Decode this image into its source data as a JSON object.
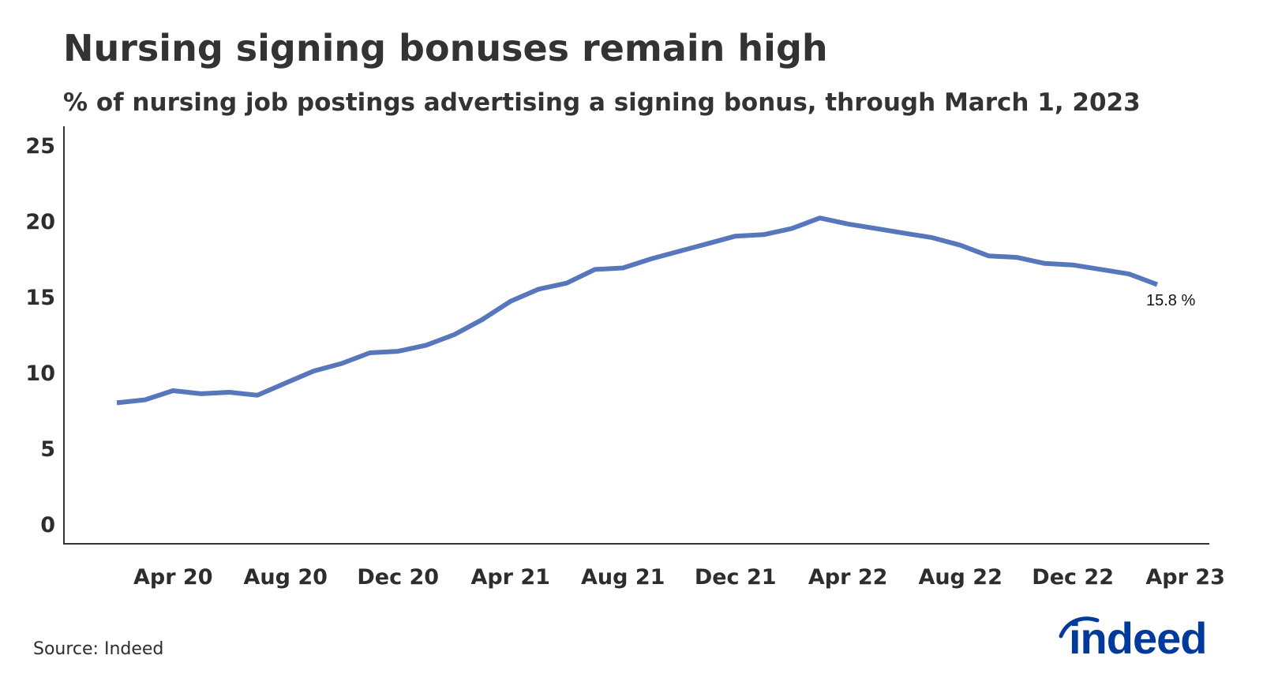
{
  "header": {
    "title": "Nursing signing bonuses remain high",
    "subtitle": "% of nursing job postings advertising a signing bonus, through March 1, 2023"
  },
  "footer": {
    "source": "Source: Indeed",
    "logo_text": "indeed"
  },
  "colors": {
    "line": "#5677bc",
    "axis": "#333333",
    "logo": "#003a9b"
  },
  "chart_data": {
    "type": "line",
    "title": "Nursing signing bonuses remain high",
    "subtitle": "% of nursing job postings advertising a signing bonus, through March 1, 2023",
    "xlabel": "",
    "ylabel": "",
    "ylim": [
      0,
      25
    ],
    "yticks": [
      0,
      5,
      10,
      15,
      20,
      25
    ],
    "xtick_labels": [
      "Apr 20",
      "Aug 20",
      "Dec 20",
      "Apr 21",
      "Aug 21",
      "Dec 21",
      "Apr 22",
      "Aug 22",
      "Dec 22",
      "Apr 23"
    ],
    "grid": false,
    "legend": null,
    "end_label": "15.8 %",
    "series": [
      {
        "name": "% of nursing job postings advertising a signing bonus",
        "x": [
          "Feb 20",
          "Mar 20",
          "Apr 20",
          "May 20",
          "Jun 20",
          "Jul 20",
          "Aug 20",
          "Sep 20",
          "Oct 20",
          "Nov 20",
          "Dec 20",
          "Jan 21",
          "Feb 21",
          "Mar 21",
          "Apr 21",
          "May 21",
          "Jun 21",
          "Jul 21",
          "Aug 21",
          "Sep 21",
          "Oct 21",
          "Nov 21",
          "Dec 21",
          "Jan 22",
          "Feb 22",
          "Mar 22",
          "Apr 22",
          "May 22",
          "Jun 22",
          "Jul 22",
          "Aug 22",
          "Sep 22",
          "Oct 22",
          "Nov 22",
          "Dec 22",
          "Jan 23",
          "Feb 23",
          "Mar 23"
        ],
        "values": [
          8.0,
          8.2,
          8.8,
          8.6,
          8.7,
          8.5,
          9.3,
          10.1,
          10.6,
          11.3,
          11.4,
          11.8,
          12.5,
          13.5,
          14.7,
          15.5,
          15.9,
          16.8,
          16.9,
          17.5,
          18.0,
          18.5,
          19.0,
          19.1,
          19.5,
          20.2,
          19.8,
          19.5,
          19.2,
          18.9,
          18.4,
          17.7,
          17.6,
          17.2,
          17.1,
          16.8,
          16.5,
          15.8
        ]
      }
    ]
  }
}
